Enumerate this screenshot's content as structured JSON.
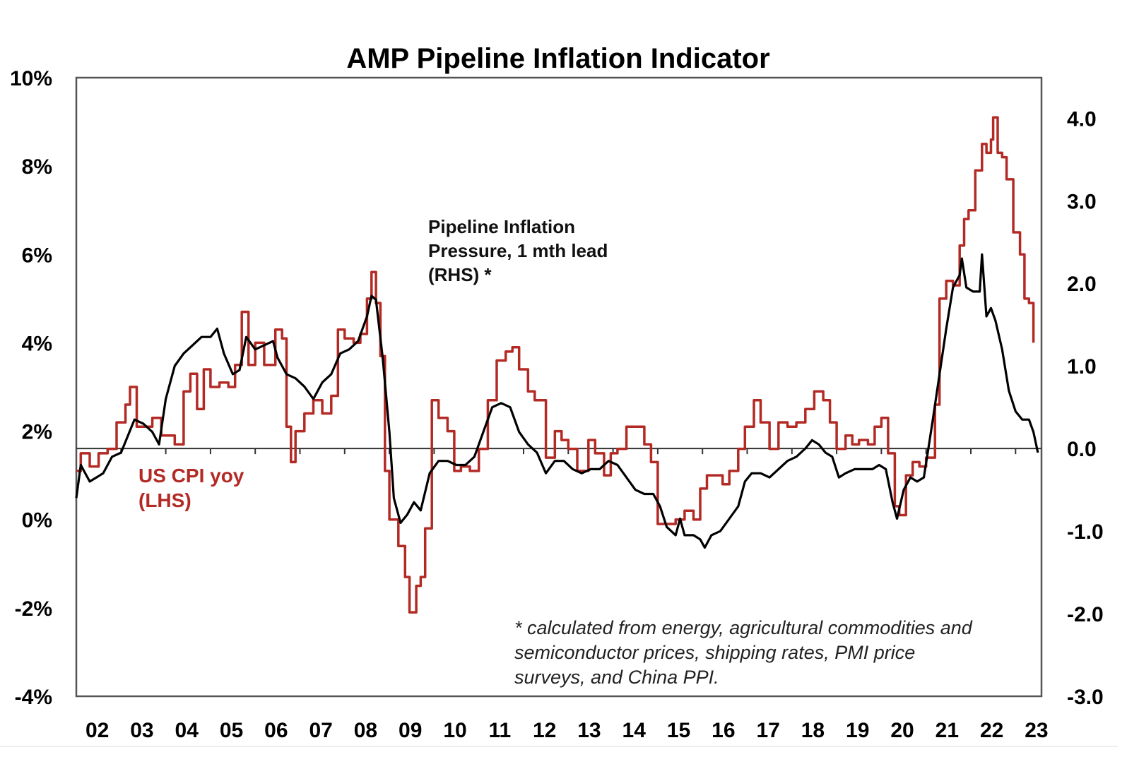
{
  "chart_data": {
    "type": "line",
    "title": "AMP Pipeline Inflation Indicator",
    "xlabel": "",
    "x_tick_labels": [
      "02",
      "03",
      "04",
      "05",
      "06",
      "07",
      "08",
      "09",
      "10",
      "11",
      "12",
      "13",
      "14",
      "15",
      "16",
      "17",
      "18",
      "19",
      "20",
      "21",
      "22",
      "23"
    ],
    "x_range": [
      2002.0,
      2023.58
    ],
    "y_left": {
      "label": "",
      "range": [
        -4,
        10
      ],
      "ticks": [
        -4,
        -2,
        0,
        2,
        4,
        6,
        8,
        10
      ],
      "tick_labels": [
        "-4%",
        "-2%",
        "0%",
        "2%",
        "4%",
        "6%",
        "8%",
        "10%"
      ]
    },
    "y_right": {
      "label": "",
      "range": [
        -3.0,
        4.49
      ],
      "ticks": [
        -3,
        -2,
        -1,
        0,
        1,
        2,
        3,
        4
      ],
      "tick_labels": [
        "-3.0",
        "-2.0",
        "-1.0",
        "0.0",
        "1.0",
        "2.0",
        "3.0",
        "4.0"
      ],
      "zero_line": true
    },
    "grid": false,
    "legend": "none (inline annotations)",
    "annotations": {
      "pipeline_label": [
        "Pipeline Inflation",
        "Pressure, 1 mth lead",
        "(RHS) *"
      ],
      "cpi_label": [
        "US CPI yoy",
        "(LHS)"
      ],
      "footnote": [
        "* calculated from energy, agricultural commodities and",
        "semiconductor prices, shipping rates, PMI price",
        "surveys, and China PPI."
      ]
    },
    "series": [
      {
        "name": "US CPI yoy (LHS)",
        "axis": "left",
        "color": "#b32a25",
        "step": true,
        "x": [
          2002.0,
          2002.1,
          2002.3,
          2002.5,
          2002.7,
          2002.9,
          2003.1,
          2003.2,
          2003.35,
          2003.5,
          2003.7,
          2003.9,
          2004.0,
          2004.2,
          2004.4,
          2004.55,
          2004.7,
          2004.85,
          2005.0,
          2005.2,
          2005.4,
          2005.55,
          2005.7,
          2005.85,
          2006.0,
          2006.2,
          2006.45,
          2006.6,
          2006.7,
          2006.8,
          2006.9,
          2007.1,
          2007.3,
          2007.5,
          2007.7,
          2007.85,
          2008.0,
          2008.2,
          2008.35,
          2008.5,
          2008.6,
          2008.7,
          2008.8,
          2008.9,
          2009.0,
          2009.1,
          2009.2,
          2009.35,
          2009.45,
          2009.6,
          2009.7,
          2009.8,
          2009.95,
          2010.1,
          2010.3,
          2010.45,
          2010.6,
          2010.8,
          2011.0,
          2011.2,
          2011.4,
          2011.6,
          2011.75,
          2011.9,
          2012.1,
          2012.25,
          2012.5,
          2012.7,
          2012.85,
          2013.0,
          2013.2,
          2013.45,
          2013.6,
          2013.8,
          2013.95,
          2014.1,
          2014.3,
          2014.5,
          2014.7,
          2014.85,
          2015.0,
          2015.2,
          2015.4,
          2015.6,
          2015.8,
          2015.95,
          2016.1,
          2016.3,
          2016.45,
          2016.6,
          2016.8,
          2016.95,
          2017.15,
          2017.3,
          2017.5,
          2017.7,
          2017.9,
          2018.1,
          2018.3,
          2018.5,
          2018.7,
          2018.85,
          2019.0,
          2019.2,
          2019.35,
          2019.5,
          2019.7,
          2019.85,
          2020.0,
          2020.15,
          2020.3,
          2020.4,
          2020.55,
          2020.7,
          2020.85,
          2021.0,
          2021.2,
          2021.3,
          2021.45,
          2021.6,
          2021.75,
          2021.85,
          2021.95,
          2022.1,
          2022.25,
          2022.35,
          2022.45,
          2022.5,
          2022.6,
          2022.7,
          2022.8,
          2022.95,
          2023.1,
          2023.2,
          2023.3,
          2023.4
        ],
        "values": [
          1.1,
          1.5,
          1.2,
          1.5,
          1.6,
          2.2,
          2.6,
          3.0,
          2.1,
          2.1,
          2.3,
          1.9,
          1.9,
          1.7,
          2.9,
          3.3,
          2.5,
          3.4,
          3.0,
          3.1,
          3.0,
          3.5,
          4.7,
          3.5,
          4.0,
          3.5,
          4.3,
          4.1,
          2.1,
          1.3,
          2.0,
          2.4,
          2.7,
          2.4,
          2.8,
          4.3,
          4.1,
          4.0,
          4.2,
          5.0,
          5.6,
          4.9,
          3.7,
          1.1,
          0.0,
          0.0,
          -0.6,
          -1.3,
          -2.1,
          -1.5,
          -1.3,
          -0.2,
          2.7,
          2.3,
          2.0,
          1.1,
          1.2,
          1.1,
          1.6,
          2.7,
          3.6,
          3.8,
          3.9,
          3.4,
          2.9,
          2.7,
          1.4,
          2.0,
          1.8,
          1.6,
          1.1,
          1.8,
          1.5,
          1.0,
          1.5,
          1.6,
          2.1,
          2.1,
          1.7,
          1.3,
          -0.1,
          -0.1,
          0.0,
          0.2,
          0.0,
          0.7,
          1.0,
          1.0,
          0.8,
          1.1,
          1.6,
          2.1,
          2.7,
          2.2,
          1.6,
          2.2,
          2.1,
          2.2,
          2.5,
          2.9,
          2.7,
          2.2,
          1.6,
          1.9,
          1.7,
          1.8,
          1.7,
          2.1,
          2.3,
          1.5,
          0.3,
          0.1,
          1.0,
          1.3,
          1.2,
          1.4,
          2.6,
          5.0,
          5.4,
          5.3,
          6.2,
          6.8,
          7.0,
          7.9,
          8.5,
          8.3,
          8.6,
          9.1,
          8.3,
          8.2,
          7.7,
          6.5,
          6.0,
          5.0,
          4.9,
          4.0
        ]
      },
      {
        "name": "Pipeline Inflation Pressure, 1 mth lead (RHS)",
        "axis": "right",
        "color": "#000000",
        "step": false,
        "x": [
          2002.0,
          2002.1,
          2002.3,
          2002.45,
          2002.6,
          2002.8,
          2003.0,
          2003.15,
          2003.3,
          2003.5,
          2003.7,
          2003.85,
          2004.0,
          2004.2,
          2004.4,
          2004.6,
          2004.8,
          2005.0,
          2005.15,
          2005.3,
          2005.5,
          2005.65,
          2005.8,
          2006.0,
          2006.2,
          2006.4,
          2006.5,
          2006.7,
          2006.9,
          2007.1,
          2007.3,
          2007.5,
          2007.7,
          2007.9,
          2008.1,
          2008.3,
          2008.5,
          2008.6,
          2008.7,
          2008.85,
          2009.0,
          2009.1,
          2009.25,
          2009.4,
          2009.55,
          2009.7,
          2009.9,
          2010.1,
          2010.3,
          2010.5,
          2010.7,
          2010.9,
          2011.1,
          2011.3,
          2011.5,
          2011.7,
          2011.9,
          2012.1,
          2012.3,
          2012.5,
          2012.7,
          2012.9,
          2013.1,
          2013.3,
          2013.5,
          2013.7,
          2013.9,
          2014.1,
          2014.3,
          2014.5,
          2014.7,
          2014.9,
          2015.05,
          2015.2,
          2015.4,
          2015.5,
          2015.6,
          2015.8,
          2015.95,
          2016.05,
          2016.2,
          2016.4,
          2016.6,
          2016.8,
          2016.95,
          2017.1,
          2017.3,
          2017.5,
          2017.7,
          2017.9,
          2018.1,
          2018.3,
          2018.45,
          2018.6,
          2018.75,
          2018.9,
          2019.05,
          2019.2,
          2019.4,
          2019.6,
          2019.8,
          2019.95,
          2020.1,
          2020.25,
          2020.35,
          2020.5,
          2020.65,
          2020.8,
          2020.95,
          2021.05,
          2021.15,
          2021.3,
          2021.45,
          2021.6,
          2021.75,
          2021.8,
          2021.9,
          2022.05,
          2022.2,
          2022.25,
          2022.35,
          2022.45,
          2022.55,
          2022.7,
          2022.85,
          2023.0,
          2023.15,
          2023.3,
          2023.4,
          2023.5
        ],
        "values": [
          -0.6,
          -0.2,
          -0.4,
          -0.35,
          -0.3,
          -0.1,
          -0.05,
          0.15,
          0.35,
          0.3,
          0.2,
          0.05,
          0.6,
          1.0,
          1.15,
          1.25,
          1.35,
          1.35,
          1.45,
          1.15,
          0.9,
          0.95,
          1.35,
          1.2,
          1.25,
          1.3,
          1.1,
          0.9,
          0.85,
          0.75,
          0.6,
          0.8,
          0.9,
          1.15,
          1.2,
          1.3,
          1.6,
          1.85,
          1.8,
          1.1,
          0.2,
          -0.6,
          -0.9,
          -0.8,
          -0.65,
          -0.75,
          -0.3,
          -0.15,
          -0.15,
          -0.2,
          -0.2,
          -0.1,
          0.2,
          0.5,
          0.55,
          0.5,
          0.2,
          0.05,
          -0.05,
          -0.3,
          -0.15,
          -0.15,
          -0.25,
          -0.3,
          -0.25,
          -0.25,
          -0.15,
          -0.2,
          -0.35,
          -0.5,
          -0.55,
          -0.55,
          -0.7,
          -0.95,
          -1.05,
          -0.85,
          -1.05,
          -1.05,
          -1.1,
          -1.2,
          -1.05,
          -1.0,
          -0.85,
          -0.7,
          -0.4,
          -0.3,
          -0.3,
          -0.35,
          -0.25,
          -0.15,
          -0.1,
          0.0,
          0.1,
          0.05,
          -0.05,
          -0.1,
          -0.35,
          -0.3,
          -0.25,
          -0.25,
          -0.25,
          -0.2,
          -0.25,
          -0.65,
          -0.85,
          -0.5,
          -0.35,
          -0.4,
          -0.35,
          0.0,
          0.35,
          0.9,
          1.45,
          1.95,
          2.1,
          2.3,
          1.95,
          1.9,
          1.9,
          2.35,
          1.6,
          1.7,
          1.55,
          1.2,
          0.7,
          0.45,
          0.35,
          0.35,
          0.2,
          -0.05
        ]
      }
    ]
  }
}
